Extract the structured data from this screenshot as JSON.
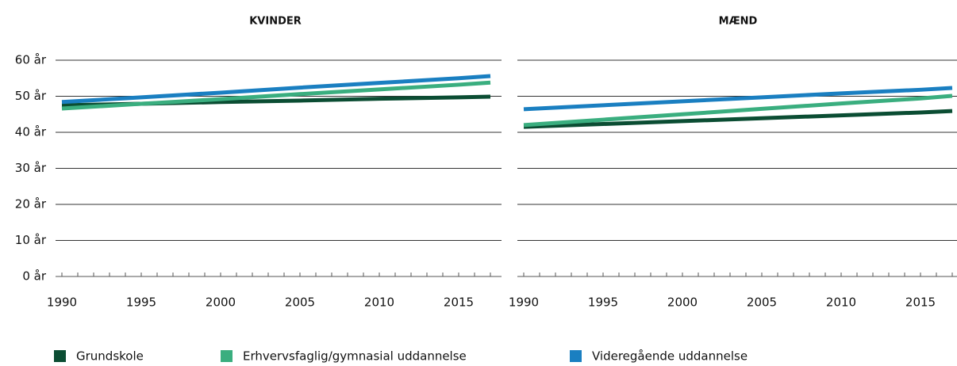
{
  "chart_data": [
    {
      "type": "line",
      "title": "KVINDER",
      "x": [
        1990,
        1995,
        2000,
        2005,
        2010,
        2015,
        2017
      ],
      "series": [
        {
          "name": "Grundskole",
          "color": "#0b4d33",
          "values": [
            47.5,
            47.9,
            48.4,
            48.8,
            49.3,
            49.7,
            49.9
          ]
        },
        {
          "name": "Erhvervsfaglig/gymnasial uddannelse",
          "color": "#3aae7f",
          "values": [
            46.6,
            47.9,
            49.2,
            50.6,
            51.9,
            53.2,
            53.8
          ]
        },
        {
          "name": "Videregående uddannelse",
          "color": "#1a7fc1",
          "values": [
            48.4,
            49.7,
            51.0,
            52.4,
            53.7,
            55.0,
            55.6
          ]
        }
      ],
      "xlim": [
        1990,
        2017
      ],
      "xticks": [
        1990,
        1995,
        2000,
        2005,
        2010,
        2015
      ],
      "minor_xticks": [
        1990,
        1991,
        1992,
        1993,
        1994,
        1995,
        1996,
        1997,
        1998,
        1999,
        2000,
        2001,
        2002,
        2003,
        2004,
        2005,
        2006,
        2007,
        2008,
        2009,
        2010,
        2011,
        2012,
        2013,
        2014,
        2015,
        2016,
        2017
      ],
      "ylim": [
        0,
        60
      ],
      "yticks": [
        {
          "value": 0,
          "label": "0 år"
        },
        {
          "value": 10,
          "label": "10 år"
        },
        {
          "value": 20,
          "label": "20 år"
        },
        {
          "value": 30,
          "label": "30 år"
        },
        {
          "value": 40,
          "label": "40 år"
        },
        {
          "value": 50,
          "label": "50 år"
        },
        {
          "value": 60,
          "label": "60 år"
        }
      ],
      "grid": true
    },
    {
      "type": "line",
      "title": "MÆND",
      "x": [
        1990,
        1995,
        2000,
        2005,
        2010,
        2015,
        2017
      ],
      "series": [
        {
          "values": [
            41.5,
            42.3,
            43.1,
            43.9,
            44.7,
            45.5,
            45.9
          ]
        },
        {
          "values": [
            42.0,
            43.5,
            45.0,
            46.5,
            48.0,
            49.4,
            50.1
          ]
        },
        {
          "values": [
            46.4,
            47.5,
            48.6,
            49.7,
            50.8,
            51.8,
            52.3
          ]
        }
      ],
      "xlim": [
        1990,
        2017
      ],
      "xticks": [
        1990,
        1995,
        2000,
        2005,
        2010,
        2015
      ],
      "minor_xticks": [
        1990,
        1991,
        1992,
        1993,
        1994,
        1995,
        1996,
        1997,
        1998,
        1999,
        2000,
        2001,
        2002,
        2003,
        2004,
        2005,
        2006,
        2007,
        2008,
        2009,
        2010,
        2011,
        2012,
        2013,
        2014,
        2015,
        2016,
        2017
      ],
      "ylim": [
        0,
        60
      ],
      "yticks": [
        0,
        10,
        20,
        30,
        40,
        50,
        60
      ],
      "grid": true
    }
  ]
}
